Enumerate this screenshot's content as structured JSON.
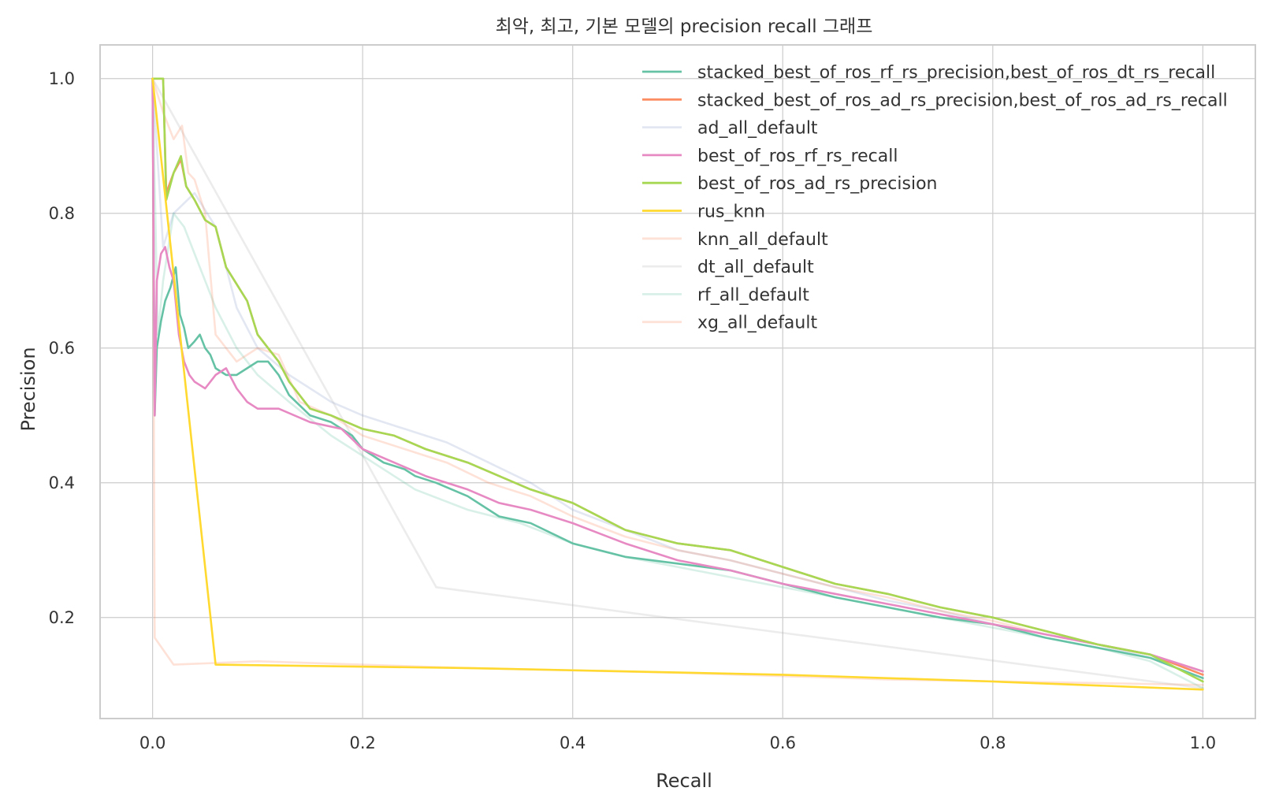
{
  "chart_data": {
    "type": "line",
    "title": "최악, 최고, 기본 모델의 precision recall 그래프",
    "xlabel": "Recall",
    "ylabel": "Precision",
    "xlim": [
      -0.05,
      1.05
    ],
    "ylim": [
      0.05,
      1.05
    ],
    "xticks": [
      0.0,
      0.2,
      0.4,
      0.6,
      0.8,
      1.0
    ],
    "yticks": [
      0.2,
      0.4,
      0.6,
      0.8,
      1.0
    ],
    "xtick_labels": [
      "0.0",
      "0.2",
      "0.4",
      "0.6",
      "0.8",
      "1.0"
    ],
    "ytick_labels": [
      "0.2",
      "0.4",
      "0.6",
      "0.8",
      "1.0"
    ],
    "grid": true,
    "legend_position": "top-right",
    "series": [
      {
        "name": "stacked_best_of_ros_rf_rs_precision,best_of_ros_dt_rs_recall",
        "color": "#66c2a5",
        "opacity": 1.0,
        "points": [
          [
            0.0,
            1.0
          ],
          [
            0.002,
            0.5
          ],
          [
            0.004,
            0.6
          ],
          [
            0.008,
            0.64
          ],
          [
            0.012,
            0.67
          ],
          [
            0.017,
            0.69
          ],
          [
            0.022,
            0.72
          ],
          [
            0.026,
            0.65
          ],
          [
            0.03,
            0.63
          ],
          [
            0.034,
            0.6
          ],
          [
            0.04,
            0.61
          ],
          [
            0.045,
            0.62
          ],
          [
            0.05,
            0.6
          ],
          [
            0.055,
            0.59
          ],
          [
            0.06,
            0.57
          ],
          [
            0.07,
            0.56
          ],
          [
            0.08,
            0.56
          ],
          [
            0.09,
            0.57
          ],
          [
            0.1,
            0.58
          ],
          [
            0.11,
            0.58
          ],
          [
            0.12,
            0.56
          ],
          [
            0.13,
            0.53
          ],
          [
            0.15,
            0.5
          ],
          [
            0.17,
            0.49
          ],
          [
            0.19,
            0.47
          ],
          [
            0.2,
            0.45
          ],
          [
            0.21,
            0.44
          ],
          [
            0.22,
            0.43
          ],
          [
            0.24,
            0.42
          ],
          [
            0.25,
            0.41
          ],
          [
            0.27,
            0.4
          ],
          [
            0.3,
            0.38
          ],
          [
            0.33,
            0.35
          ],
          [
            0.36,
            0.34
          ],
          [
            0.4,
            0.31
          ],
          [
            0.45,
            0.29
          ],
          [
            0.5,
            0.28
          ],
          [
            0.55,
            0.27
          ],
          [
            0.6,
            0.25
          ],
          [
            0.65,
            0.23
          ],
          [
            0.7,
            0.215
          ],
          [
            0.75,
            0.2
          ],
          [
            0.8,
            0.19
          ],
          [
            0.85,
            0.17
          ],
          [
            0.9,
            0.155
          ],
          [
            0.95,
            0.14
          ],
          [
            1.0,
            0.11
          ]
        ]
      },
      {
        "name": "stacked_best_of_ros_ad_rs_precision,best_of_ros_ad_rs_recall",
        "color": "#fc8d62",
        "opacity": 1.0,
        "points": [
          [
            0.0,
            1.0
          ],
          [
            0.005,
            1.0
          ],
          [
            0.01,
            1.0
          ],
          [
            0.013,
            0.83
          ],
          [
            0.02,
            0.86
          ],
          [
            0.027,
            0.88
          ],
          [
            0.032,
            0.84
          ],
          [
            0.04,
            0.82
          ],
          [
            0.05,
            0.79
          ],
          [
            0.06,
            0.78
          ],
          [
            0.07,
            0.72
          ],
          [
            0.09,
            0.67
          ],
          [
            0.1,
            0.62
          ],
          [
            0.11,
            0.6
          ],
          [
            0.12,
            0.58
          ],
          [
            0.13,
            0.55
          ],
          [
            0.15,
            0.51
          ],
          [
            0.17,
            0.5
          ],
          [
            0.2,
            0.48
          ],
          [
            0.23,
            0.47
          ],
          [
            0.26,
            0.45
          ],
          [
            0.3,
            0.43
          ],
          [
            0.33,
            0.41
          ],
          [
            0.36,
            0.39
          ],
          [
            0.4,
            0.37
          ],
          [
            0.45,
            0.33
          ],
          [
            0.5,
            0.31
          ],
          [
            0.55,
            0.3
          ],
          [
            0.6,
            0.275
          ],
          [
            0.65,
            0.25
          ],
          [
            0.7,
            0.235
          ],
          [
            0.75,
            0.215
          ],
          [
            0.8,
            0.2
          ],
          [
            0.85,
            0.18
          ],
          [
            0.9,
            0.16
          ],
          [
            0.95,
            0.145
          ],
          [
            1.0,
            0.115
          ]
        ]
      },
      {
        "name": "ad_all_default",
        "color": "#8da0cb",
        "opacity": 0.25,
        "points": [
          [
            0.0,
            1.0
          ],
          [
            0.01,
            0.75
          ],
          [
            0.02,
            0.8
          ],
          [
            0.04,
            0.83
          ],
          [
            0.06,
            0.78
          ],
          [
            0.08,
            0.66
          ],
          [
            0.1,
            0.6
          ],
          [
            0.13,
            0.56
          ],
          [
            0.17,
            0.52
          ],
          [
            0.2,
            0.5
          ],
          [
            0.24,
            0.48
          ],
          [
            0.28,
            0.46
          ],
          [
            0.32,
            0.43
          ],
          [
            0.36,
            0.4
          ],
          [
            0.4,
            0.36
          ],
          [
            0.45,
            0.33
          ],
          [
            0.5,
            0.3
          ],
          [
            0.55,
            0.285
          ],
          [
            0.6,
            0.265
          ],
          [
            0.65,
            0.245
          ],
          [
            0.7,
            0.225
          ],
          [
            0.75,
            0.21
          ],
          [
            0.8,
            0.19
          ],
          [
            0.85,
            0.175
          ],
          [
            0.9,
            0.16
          ],
          [
            0.95,
            0.14
          ],
          [
            1.0,
            0.12
          ]
        ]
      },
      {
        "name": "best_of_ros_rf_rs_recall",
        "color": "#e78ac3",
        "opacity": 1.0,
        "points": [
          [
            0.0,
            1.0
          ],
          [
            0.002,
            0.5
          ],
          [
            0.004,
            0.7
          ],
          [
            0.008,
            0.74
          ],
          [
            0.012,
            0.75
          ],
          [
            0.016,
            0.72
          ],
          [
            0.02,
            0.7
          ],
          [
            0.025,
            0.62
          ],
          [
            0.03,
            0.58
          ],
          [
            0.035,
            0.56
          ],
          [
            0.04,
            0.55
          ],
          [
            0.05,
            0.54
          ],
          [
            0.06,
            0.56
          ],
          [
            0.07,
            0.57
          ],
          [
            0.08,
            0.54
          ],
          [
            0.09,
            0.52
          ],
          [
            0.1,
            0.51
          ],
          [
            0.12,
            0.51
          ],
          [
            0.15,
            0.49
          ],
          [
            0.18,
            0.48
          ],
          [
            0.2,
            0.45
          ],
          [
            0.23,
            0.43
          ],
          [
            0.26,
            0.41
          ],
          [
            0.3,
            0.39
          ],
          [
            0.33,
            0.37
          ],
          [
            0.36,
            0.36
          ],
          [
            0.4,
            0.34
          ],
          [
            0.45,
            0.31
          ],
          [
            0.5,
            0.285
          ],
          [
            0.55,
            0.27
          ],
          [
            0.6,
            0.25
          ],
          [
            0.65,
            0.235
          ],
          [
            0.7,
            0.22
          ],
          [
            0.75,
            0.205
          ],
          [
            0.8,
            0.19
          ],
          [
            0.85,
            0.175
          ],
          [
            0.9,
            0.16
          ],
          [
            0.95,
            0.145
          ],
          [
            1.0,
            0.12
          ]
        ]
      },
      {
        "name": "best_of_ros_ad_rs_precision",
        "color": "#a6d854",
        "opacity": 1.0,
        "points": [
          [
            0.0,
            1.0
          ],
          [
            0.005,
            1.0
          ],
          [
            0.01,
            1.0
          ],
          [
            0.013,
            0.82
          ],
          [
            0.02,
            0.86
          ],
          [
            0.027,
            0.885
          ],
          [
            0.032,
            0.84
          ],
          [
            0.04,
            0.82
          ],
          [
            0.05,
            0.79
          ],
          [
            0.06,
            0.78
          ],
          [
            0.07,
            0.72
          ],
          [
            0.09,
            0.67
          ],
          [
            0.1,
            0.62
          ],
          [
            0.11,
            0.6
          ],
          [
            0.12,
            0.58
          ],
          [
            0.13,
            0.55
          ],
          [
            0.15,
            0.51
          ],
          [
            0.17,
            0.5
          ],
          [
            0.2,
            0.48
          ],
          [
            0.23,
            0.47
          ],
          [
            0.26,
            0.45
          ],
          [
            0.3,
            0.43
          ],
          [
            0.33,
            0.41
          ],
          [
            0.36,
            0.39
          ],
          [
            0.4,
            0.37
          ],
          [
            0.45,
            0.33
          ],
          [
            0.5,
            0.31
          ],
          [
            0.55,
            0.3
          ],
          [
            0.6,
            0.275
          ],
          [
            0.65,
            0.25
          ],
          [
            0.7,
            0.235
          ],
          [
            0.75,
            0.215
          ],
          [
            0.8,
            0.2
          ],
          [
            0.85,
            0.18
          ],
          [
            0.9,
            0.16
          ],
          [
            0.95,
            0.145
          ],
          [
            1.0,
            0.105
          ]
        ]
      },
      {
        "name": "rus_knn",
        "color": "#ffd92f",
        "opacity": 1.0,
        "points": [
          [
            0.0,
            1.0
          ],
          [
            0.06,
            0.13
          ],
          [
            0.3,
            0.125
          ],
          [
            0.6,
            0.115
          ],
          [
            0.8,
            0.105
          ],
          [
            1.0,
            0.093
          ]
        ]
      },
      {
        "name": "knn_all_default",
        "color": "#fc8d62",
        "opacity": 0.25,
        "points": [
          [
            0.0,
            1.0
          ],
          [
            0.002,
            0.17
          ],
          [
            0.02,
            0.13
          ],
          [
            0.1,
            0.135
          ],
          [
            0.3,
            0.125
          ],
          [
            0.5,
            0.118
          ],
          [
            0.7,
            0.108
          ],
          [
            1.0,
            0.1
          ]
        ]
      },
      {
        "name": "dt_all_default",
        "color": "#b3b3b3",
        "opacity": 0.25,
        "points": [
          [
            0.0,
            1.0
          ],
          [
            0.27,
            0.245
          ],
          [
            1.0,
            0.095
          ]
        ]
      },
      {
        "name": "rf_all_default",
        "color": "#66c2a5",
        "opacity": 0.25,
        "points": [
          [
            0.0,
            1.0
          ],
          [
            0.005,
            0.62
          ],
          [
            0.01,
            0.7
          ],
          [
            0.02,
            0.8
          ],
          [
            0.03,
            0.78
          ],
          [
            0.04,
            0.74
          ],
          [
            0.05,
            0.7
          ],
          [
            0.06,
            0.66
          ],
          [
            0.08,
            0.6
          ],
          [
            0.1,
            0.56
          ],
          [
            0.13,
            0.52
          ],
          [
            0.17,
            0.47
          ],
          [
            0.2,
            0.44
          ],
          [
            0.25,
            0.39
          ],
          [
            0.3,
            0.36
          ],
          [
            0.35,
            0.34
          ],
          [
            0.4,
            0.31
          ],
          [
            0.45,
            0.29
          ],
          [
            0.5,
            0.275
          ],
          [
            0.55,
            0.26
          ],
          [
            0.6,
            0.245
          ],
          [
            0.65,
            0.23
          ],
          [
            0.7,
            0.215
          ],
          [
            0.75,
            0.2
          ],
          [
            0.8,
            0.185
          ],
          [
            0.85,
            0.17
          ],
          [
            0.9,
            0.155
          ],
          [
            0.95,
            0.135
          ],
          [
            1.0,
            0.095
          ]
        ]
      },
      {
        "name": "xg_all_default",
        "color": "#fc8d62",
        "opacity": 0.25,
        "points": [
          [
            0.0,
            1.0
          ],
          [
            0.01,
            0.95
          ],
          [
            0.02,
            0.91
          ],
          [
            0.028,
            0.93
          ],
          [
            0.034,
            0.86
          ],
          [
            0.04,
            0.85
          ],
          [
            0.05,
            0.8
          ],
          [
            0.055,
            0.71
          ],
          [
            0.06,
            0.62
          ],
          [
            0.07,
            0.6
          ],
          [
            0.08,
            0.58
          ],
          [
            0.1,
            0.6
          ],
          [
            0.12,
            0.59
          ],
          [
            0.14,
            0.52
          ],
          [
            0.17,
            0.5
          ],
          [
            0.2,
            0.47
          ],
          [
            0.24,
            0.45
          ],
          [
            0.28,
            0.43
          ],
          [
            0.32,
            0.4
          ],
          [
            0.36,
            0.38
          ],
          [
            0.4,
            0.35
          ],
          [
            0.45,
            0.32
          ],
          [
            0.5,
            0.3
          ],
          [
            0.55,
            0.285
          ],
          [
            0.6,
            0.265
          ],
          [
            0.65,
            0.245
          ],
          [
            0.7,
            0.23
          ],
          [
            0.75,
            0.21
          ],
          [
            0.8,
            0.195
          ],
          [
            0.85,
            0.175
          ],
          [
            0.9,
            0.16
          ],
          [
            0.95,
            0.145
          ],
          [
            1.0,
            0.12
          ]
        ]
      }
    ]
  }
}
